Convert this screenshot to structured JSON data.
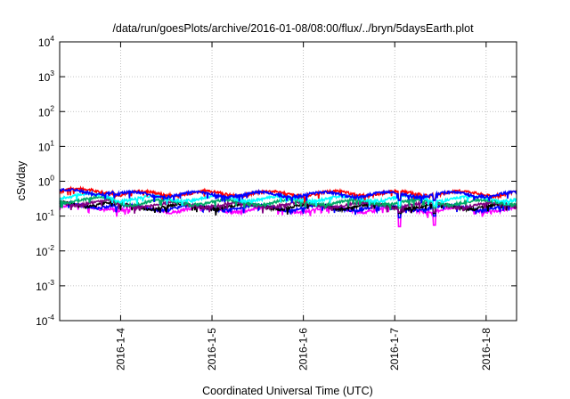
{
  "chart_data": {
    "type": "line",
    "title": "/data/run/goesPlots/archive/2016-01-08/08:00/flux/../bryn/5daysEarth.plot",
    "xlabel": "Coordinated Universal Time (UTC)",
    "ylabel": "cSv/day",
    "y_scale": "log",
    "ylim": [
      0.0001,
      10000
    ],
    "yticks": [
      {
        "value": 0.0001,
        "base": "10",
        "exp": "-4"
      },
      {
        "value": 0.001,
        "base": "10",
        "exp": "-3"
      },
      {
        "value": 0.01,
        "base": "10",
        "exp": "-2"
      },
      {
        "value": 0.1,
        "base": "10",
        "exp": "-1"
      },
      {
        "value": 1,
        "base": "10",
        "exp": "0"
      },
      {
        "value": 10,
        "base": "10",
        "exp": "1"
      },
      {
        "value": 100,
        "base": "10",
        "exp": "2"
      },
      {
        "value": 1000,
        "base": "10",
        "exp": "3"
      },
      {
        "value": 10000,
        "base": "10",
        "exp": "4"
      }
    ],
    "xlim": [
      "2016-01-03 08:00",
      "2016-01-08 08:00"
    ],
    "xticks": [
      "2016-1-4",
      "2016-1-5",
      "2016-1-6",
      "2016-1-7",
      "2016-1-8"
    ],
    "xtick_days": [
      0.667,
      1.667,
      2.667,
      3.667,
      4.667
    ],
    "grid": true,
    "series": [
      {
        "color": "#ff00ff",
        "level": 0.155,
        "dips": [
          [
            3.72,
            0.05
          ],
          [
            4.1,
            0.055
          ]
        ]
      },
      {
        "color": "#0000ff",
        "level": 0.175,
        "dips": [
          [
            3.72,
            0.09
          ],
          [
            4.1,
            0.1
          ]
        ]
      },
      {
        "color": "#000000",
        "level": 0.19,
        "dips": [
          [
            3.72,
            0.12
          ],
          [
            4.1,
            0.12
          ]
        ]
      },
      {
        "color": "#800080",
        "level": 0.21,
        "dips": [
          [
            3.72,
            0.13
          ],
          [
            4.1,
            0.13
          ]
        ]
      },
      {
        "color": "#00aa66",
        "level": 0.25,
        "dips": [
          [
            3.72,
            0.17
          ],
          [
            4.1,
            0.17
          ]
        ]
      },
      {
        "color": "#00ffff",
        "level": 0.32,
        "dips": [
          [
            3.72,
            0.2
          ],
          [
            4.1,
            0.2
          ]
        ]
      },
      {
        "color": "#ff0000",
        "level": 0.45,
        "dips": [
          [
            3.72,
            0.3
          ],
          [
            4.1,
            0.3
          ]
        ]
      },
      {
        "color": "#0000ff",
        "level": 0.42,
        "dips": [
          [
            3.72,
            0.28
          ],
          [
            4.1,
            0.28
          ]
        ]
      }
    ]
  }
}
